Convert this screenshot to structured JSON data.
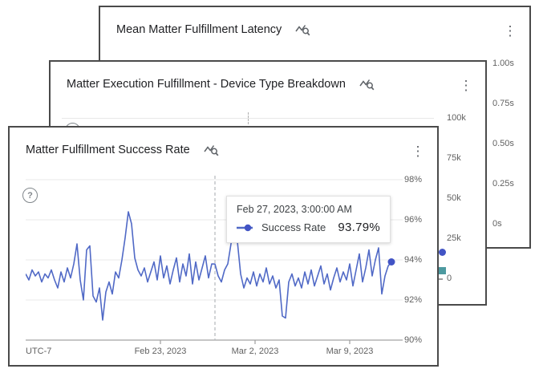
{
  "icons": {
    "kebab_glyph": "⋮",
    "help_glyph": "?"
  },
  "colors": {
    "line_blue": "#5069c6",
    "end_dot_blue": "#4254c5",
    "series_marker_blue": "#4254c5",
    "series_marker_teal": "#4d9aa0",
    "card_border": "#4a4a4a",
    "gridline": "#e8e8e8",
    "axis_gray": "#b3b3b3"
  },
  "cards": [
    {
      "title": "Mean Matter Fulfillment Latency",
      "y_ticks": [
        "1.00s",
        "0.75s",
        "0.50s",
        "0.25s",
        "0s"
      ]
    },
    {
      "title": "Matter Execution Fulfillment - Device Type Breakdown",
      "y_ticks": [
        "100k",
        "75k",
        "50k",
        "25k",
        "0"
      ]
    },
    {
      "title": "Matter Fulfillment Success Rate",
      "y_ticks": [
        "98%",
        "96%",
        "94%",
        "92%",
        "90%"
      ],
      "x_ticks": [
        "Feb 23, 2023",
        "Mar 2, 2023",
        "Mar 9, 2023"
      ],
      "timezone": "UTC-7",
      "tooltip": {
        "timestamp": "Feb 27, 2023, 3:00:00 AM",
        "series": "Success Rate",
        "value": "93.79%"
      }
    }
  ],
  "chart_data": [
    {
      "type": "line",
      "title": "Matter Fulfillment Success Rate",
      "timezone": "UTC-7",
      "x_tick_labels": [
        "Feb 23, 2023",
        "Mar 2, 2023",
        "Mar 9, 2023"
      ],
      "x_range_approx": [
        "Feb 13, 2023",
        "Mar 12, 2023"
      ],
      "ylim": [
        90,
        98
      ],
      "y_tick_labels": [
        "98%",
        "96%",
        "94%",
        "92%",
        "90%"
      ],
      "grid": true,
      "legend_position": "tooltip",
      "highlight_point": {
        "timestamp": "Feb 27, 2023, 3:00:00 AM",
        "value_pct": 93.79
      },
      "series": [
        {
          "name": "Success Rate",
          "unit": "%",
          "values_pct": [
            93.3,
            93.0,
            93.5,
            93.2,
            93.4,
            92.9,
            93.3,
            93.1,
            93.5,
            93.0,
            92.6,
            93.4,
            92.9,
            93.6,
            93.1,
            93.8,
            94.8,
            93.0,
            92.0,
            94.5,
            94.7,
            92.2,
            91.9,
            92.6,
            91.0,
            92.4,
            92.9,
            92.3,
            93.4,
            93.1,
            94.0,
            95.1,
            96.4,
            95.8,
            94.1,
            93.5,
            93.2,
            93.6,
            92.9,
            93.4,
            93.9,
            93.0,
            94.2,
            93.1,
            93.7,
            92.8,
            93.5,
            94.1,
            92.9,
            93.8,
            93.2,
            94.3,
            92.8,
            93.9,
            93.0,
            93.6,
            94.2,
            93.1,
            93.8,
            93.79,
            93.2,
            92.9,
            93.5,
            93.8,
            94.8,
            96.1,
            94.9,
            93.3,
            92.6,
            93.1,
            92.8,
            93.4,
            92.7,
            93.3,
            92.9,
            93.6,
            92.8,
            93.2,
            92.6,
            93.0,
            91.2,
            91.1,
            92.9,
            93.3,
            92.7,
            93.1,
            92.6,
            93.4,
            92.8,
            93.5,
            92.7,
            93.2,
            93.7,
            92.8,
            93.3,
            92.5,
            93.1,
            93.6,
            92.9,
            93.4,
            93.0,
            93.8,
            92.7,
            93.5,
            94.3,
            92.9,
            93.6,
            94.5,
            93.2,
            94.0,
            94.6,
            92.3,
            93.2,
            93.7,
            93.9
          ]
        }
      ]
    },
    {
      "type": "line",
      "title": "Matter Execution Fulfillment - Device Type Breakdown",
      "ylim": [
        0,
        100000
      ],
      "y_tick_labels": [
        "100k",
        "75k",
        "50k",
        "25k",
        "0"
      ],
      "visible_series_markers": [
        "blue-circle",
        "teal-square"
      ],
      "occluded": true
    },
    {
      "type": "line",
      "title": "Mean Matter Fulfillment Latency",
      "ylim_seconds": [
        0,
        1
      ],
      "y_tick_labels": [
        "1.00s",
        "0.75s",
        "0.50s",
        "0.25s",
        "0s"
      ],
      "occluded": true
    }
  ]
}
